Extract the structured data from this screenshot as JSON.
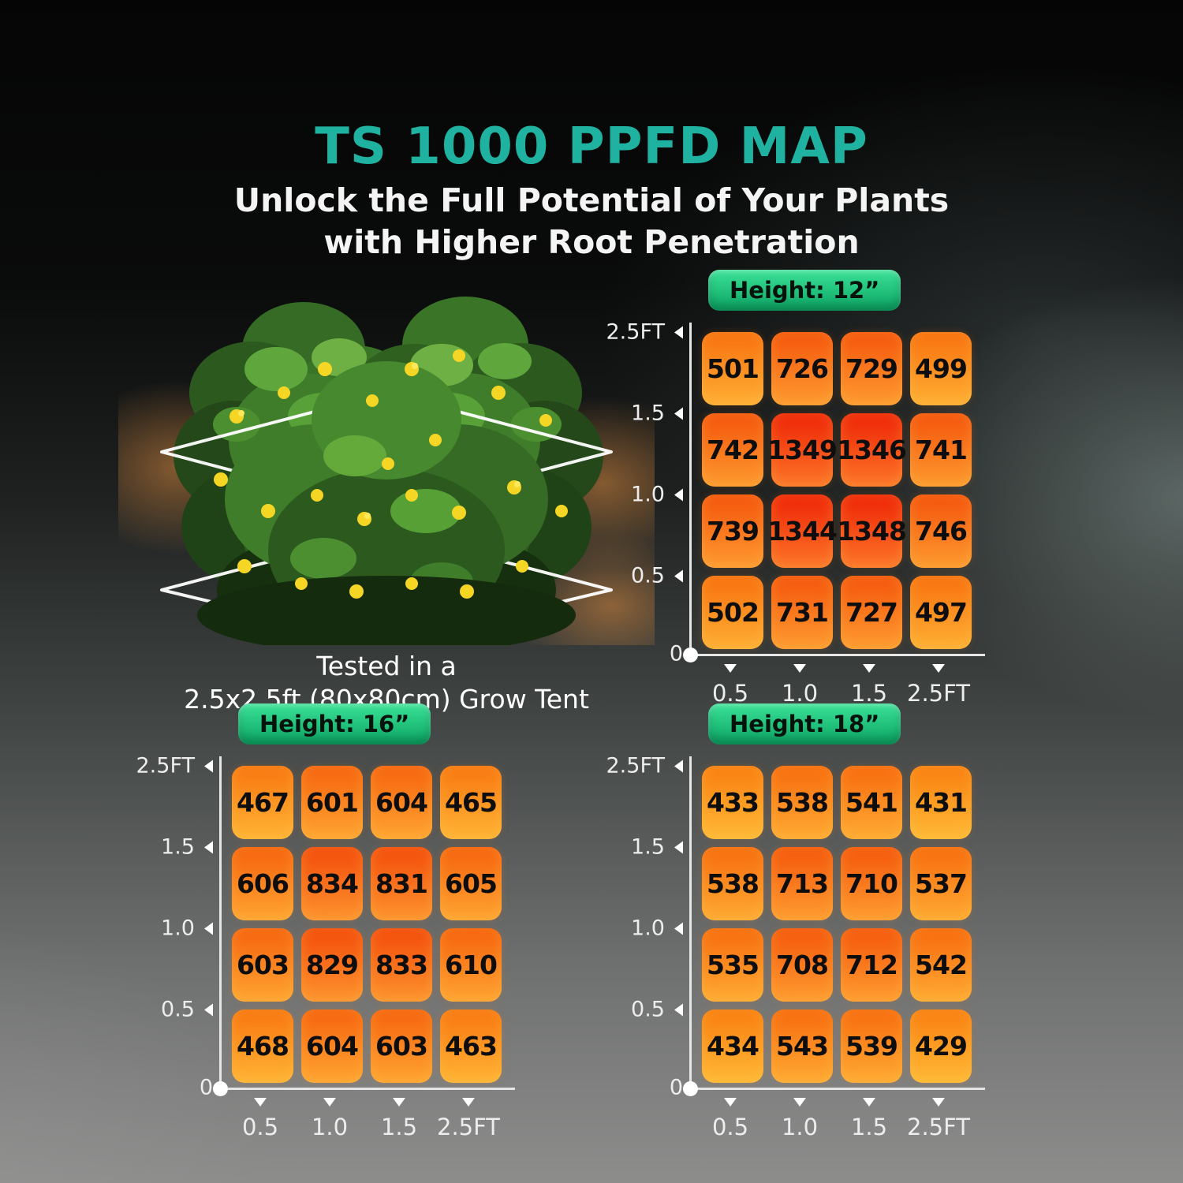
{
  "page": {
    "title": "TS 1000 PPFD MAP",
    "subtitle_line1": "Unlock the Full Potential of Your Plants",
    "subtitle_line2": "with Higher Root Penetration"
  },
  "hero": {
    "caption_line1": "Tested in a",
    "caption_line2": "2.5x2.5ft (80x80cm) Grow Tent"
  },
  "colors": {
    "accent_teal": "#20B2A0",
    "badge_gradient_top": "#3BE298",
    "badge_gradient_bottom": "#0BA462",
    "heat_low_top": "#FA8310",
    "heat_low_bottom": "#FFBE37",
    "heat_high_top": "#EE2306",
    "heat_high_bottom": "#FC7628",
    "axis_line": "#E6E6E6",
    "cell_text": "#0E0E0E",
    "background_dark": "#050505",
    "background_light": "#8D8D8C",
    "flower_yellow": "#F6D625",
    "leaf_green": "#4C8F31"
  },
  "chart_data": [
    {
      "type": "heatmap",
      "title": "Height: 12”",
      "x_ticks": [
        "0.5",
        "1.0",
        "1.5",
        "2.5FT"
      ],
      "y_ticks": [
        "2.5FT",
        "1.5",
        "1.0",
        "0.5",
        "0"
      ],
      "values": [
        [
          501,
          726,
          729,
          499
        ],
        [
          742,
          1349,
          1346,
          741
        ],
        [
          739,
          1344,
          1348,
          746
        ],
        [
          502,
          731,
          727,
          497
        ]
      ]
    },
    {
      "type": "heatmap",
      "title": "Height: 16”",
      "x_ticks": [
        "0.5",
        "1.0",
        "1.5",
        "2.5FT"
      ],
      "y_ticks": [
        "2.5FT",
        "1.5",
        "1.0",
        "0.5",
        "0"
      ],
      "values": [
        [
          467,
          601,
          604,
          465
        ],
        [
          606,
          834,
          831,
          605
        ],
        [
          603,
          829,
          833,
          610
        ],
        [
          468,
          604,
          603,
          463
        ]
      ]
    },
    {
      "type": "heatmap",
      "title": "Height: 18”",
      "x_ticks": [
        "0.5",
        "1.0",
        "1.5",
        "2.5FT"
      ],
      "y_ticks": [
        "2.5FT",
        "1.5",
        "1.0",
        "0.5",
        "0"
      ],
      "values": [
        [
          433,
          538,
          541,
          431
        ],
        [
          538,
          713,
          710,
          537
        ],
        [
          535,
          708,
          712,
          542
        ],
        [
          434,
          543,
          539,
          429
        ]
      ]
    }
  ]
}
